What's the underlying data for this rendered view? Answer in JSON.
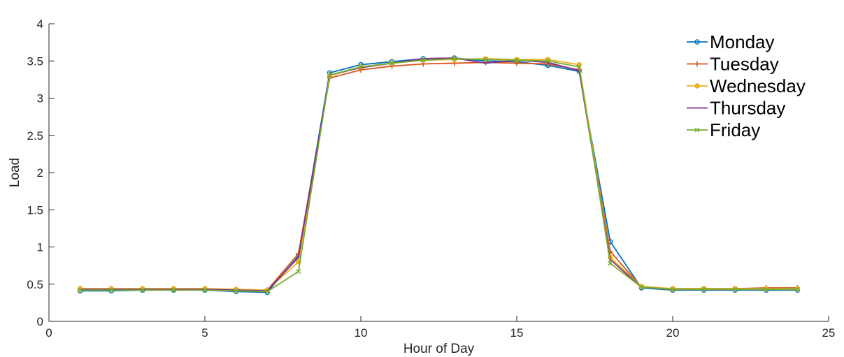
{
  "chart_data": {
    "type": "line",
    "title": "",
    "xlabel": "Hour of Day",
    "ylabel": "Load",
    "xlim": [
      0,
      25
    ],
    "ylim": [
      0,
      4
    ],
    "xticks": [
      0,
      5,
      10,
      15,
      20,
      25
    ],
    "yticks": [
      0,
      0.5,
      1,
      1.5,
      2,
      2.5,
      3,
      3.5,
      4
    ],
    "xtick_labels": [
      "0",
      "5",
      "10",
      "15",
      "20",
      "25"
    ],
    "ytick_labels": [
      "0",
      "0.5",
      "1",
      "1.5",
      "2",
      "2.5",
      "3",
      "3.5",
      "4"
    ],
    "grid": false,
    "legend_position": "top-right",
    "x": [
      1,
      2,
      3,
      4,
      5,
      6,
      7,
      8,
      9,
      10,
      11,
      12,
      13,
      14,
      15,
      16,
      17,
      18,
      19,
      20,
      21,
      22,
      23,
      24
    ],
    "series": [
      {
        "name": "Monday",
        "color": "#0072BD",
        "marker": "circle",
        "values": [
          0.41,
          0.41,
          0.42,
          0.42,
          0.42,
          0.4,
          0.39,
          0.88,
          3.34,
          3.45,
          3.49,
          3.53,
          3.54,
          3.5,
          3.49,
          3.44,
          3.36,
          1.07,
          0.45,
          0.42,
          0.42,
          0.42,
          0.42,
          0.42
        ]
      },
      {
        "name": "Tuesday",
        "color": "#D95319",
        "marker": "plus",
        "values": [
          0.44,
          0.44,
          0.44,
          0.44,
          0.44,
          0.43,
          0.42,
          0.91,
          3.27,
          3.38,
          3.43,
          3.46,
          3.47,
          3.48,
          3.47,
          3.46,
          3.38,
          0.94,
          0.46,
          0.44,
          0.44,
          0.44,
          0.45,
          0.45
        ]
      },
      {
        "name": "Wednesday",
        "color": "#EDB120",
        "marker": "dot",
        "values": [
          0.44,
          0.44,
          0.44,
          0.44,
          0.44,
          0.43,
          0.42,
          0.8,
          3.3,
          3.42,
          3.47,
          3.51,
          3.52,
          3.53,
          3.52,
          3.52,
          3.45,
          0.86,
          0.47,
          0.44,
          0.44,
          0.44,
          0.44,
          0.44
        ]
      },
      {
        "name": "Thursday",
        "color": "#7E2F8E",
        "marker": "none",
        "values": [
          0.43,
          0.43,
          0.43,
          0.43,
          0.43,
          0.42,
          0.41,
          0.86,
          3.31,
          3.41,
          3.47,
          3.53,
          3.54,
          3.47,
          3.51,
          3.48,
          3.37,
          0.83,
          0.46,
          0.43,
          0.43,
          0.43,
          0.43,
          0.43
        ]
      },
      {
        "name": "Friday",
        "color": "#77AC30",
        "marker": "x",
        "values": [
          0.42,
          0.42,
          0.42,
          0.42,
          0.42,
          0.41,
          0.4,
          0.67,
          3.31,
          3.42,
          3.47,
          3.51,
          3.53,
          3.52,
          3.51,
          3.5,
          3.42,
          0.78,
          0.46,
          0.43,
          0.43,
          0.43,
          0.43,
          0.43
        ]
      }
    ]
  }
}
